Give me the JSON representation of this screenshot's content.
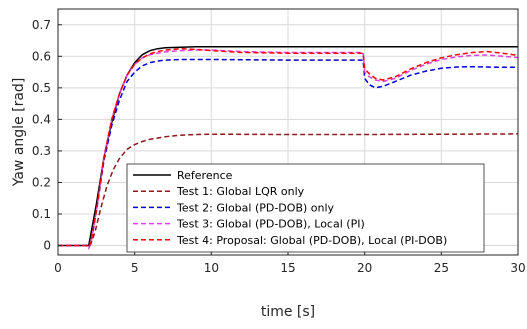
{
  "chart_data": {
    "type": "line",
    "title": "",
    "xlabel": "time [s]",
    "ylabel": "Yaw angle [rad]",
    "xlim": [
      0,
      30
    ],
    "ylim": [
      -0.03,
      0.75
    ],
    "xticks": [
      "0",
      "5",
      "10",
      "15",
      "20",
      "25",
      "30"
    ],
    "yticks": [
      "0",
      "0.1",
      "0.2",
      "0.3",
      "0.4",
      "0.5",
      "0.6",
      "0.7"
    ],
    "grid": true,
    "legend_position": "bottom-center",
    "series": [
      {
        "name": "Reference",
        "color": "#000000",
        "style": "solid",
        "x": [
          0,
          2.0,
          2.5,
          3.0,
          3.5,
          4.0,
          4.5,
          5.0,
          5.5,
          6.0,
          6.5,
          7.0,
          8.0,
          9.0,
          10,
          20,
          30
        ],
        "y": [
          0,
          0,
          0.13,
          0.28,
          0.39,
          0.48,
          0.54,
          0.58,
          0.605,
          0.618,
          0.624,
          0.627,
          0.629,
          0.63,
          0.63,
          0.63,
          0.63
        ]
      },
      {
        "name": "Test 1: Global LQR only",
        "color": "#8B1A1A",
        "style": "dashed",
        "x": [
          0,
          2.1,
          2.4,
          2.8,
          3.2,
          3.6,
          4.0,
          4.5,
          5.0,
          5.5,
          6.0,
          7.0,
          8.0,
          9.0,
          10,
          15,
          20,
          25,
          30
        ],
        "y": [
          0,
          0,
          0.04,
          0.12,
          0.19,
          0.24,
          0.275,
          0.305,
          0.32,
          0.33,
          0.337,
          0.345,
          0.35,
          0.352,
          0.353,
          0.352,
          0.352,
          0.353,
          0.354
        ]
      },
      {
        "name": "Test 2: Global (PD-DOB) only",
        "color": "#0000DD",
        "style": "dashed",
        "x": [
          0,
          1.8,
          2.0,
          2.2,
          2.6,
          3.0,
          3.5,
          4.0,
          4.5,
          5.0,
          5.5,
          6.0,
          6.5,
          7.0,
          8.0,
          10,
          15,
          19.9,
          20.0,
          20.3,
          20.7,
          21.2,
          22.0,
          23.0,
          24.0,
          25.0,
          26.0,
          27.0,
          28.0,
          29.0,
          30.0
        ],
        "y": [
          0,
          0,
          -0.005,
          0.02,
          0.14,
          0.27,
          0.38,
          0.46,
          0.52,
          0.55,
          0.57,
          0.58,
          0.585,
          0.588,
          0.59,
          0.59,
          0.588,
          0.588,
          0.53,
          0.51,
          0.5,
          0.505,
          0.52,
          0.54,
          0.553,
          0.562,
          0.566,
          0.567,
          0.566,
          0.565,
          0.565
        ]
      },
      {
        "name": "Test 3: Global (PD-DOB), Local (PI)",
        "color": "#E040E0",
        "style": "dashed",
        "x": [
          0,
          1.8,
          2.0,
          2.2,
          2.6,
          3.0,
          3.5,
          4.0,
          4.5,
          5.0,
          5.5,
          6.0,
          6.5,
          7.0,
          8.0,
          9.0,
          10,
          12,
          15,
          19.9,
          20.0,
          20.3,
          20.7,
          21.2,
          22.0,
          23.0,
          24.0,
          25.0,
          26.0,
          27.0,
          28.0,
          29.0,
          30.0
        ],
        "y": [
          0,
          0,
          -0.01,
          0.02,
          0.14,
          0.28,
          0.4,
          0.48,
          0.54,
          0.575,
          0.595,
          0.605,
          0.61,
          0.614,
          0.618,
          0.62,
          0.62,
          0.615,
          0.612,
          0.612,
          0.55,
          0.535,
          0.525,
          0.52,
          0.53,
          0.555,
          0.575,
          0.59,
          0.598,
          0.603,
          0.604,
          0.6,
          0.596
        ]
      },
      {
        "name": "Test 4: Proposal: Global (PD-DOB), Local (PI-DOB)",
        "color": "#FF0000",
        "style": "dashed",
        "x": [
          0,
          1.8,
          2.0,
          2.2,
          2.6,
          3.0,
          3.5,
          4.0,
          4.5,
          5.0,
          5.5,
          6.0,
          6.5,
          7.0,
          7.5,
          8.0,
          9.0,
          10,
          12,
          15,
          19.9,
          20.0,
          20.3,
          20.7,
          21.2,
          22.0,
          23.0,
          24.0,
          25.0,
          26.0,
          27.0,
          28.0,
          29.0,
          30.0
        ],
        "y": [
          0,
          0,
          -0.005,
          0.02,
          0.14,
          0.28,
          0.4,
          0.48,
          0.54,
          0.575,
          0.595,
          0.608,
          0.615,
          0.62,
          0.622,
          0.624,
          0.622,
          0.618,
          0.612,
          0.61,
          0.61,
          0.56,
          0.545,
          0.53,
          0.525,
          0.535,
          0.56,
          0.58,
          0.595,
          0.605,
          0.612,
          0.615,
          0.61,
          0.603
        ]
      }
    ]
  }
}
